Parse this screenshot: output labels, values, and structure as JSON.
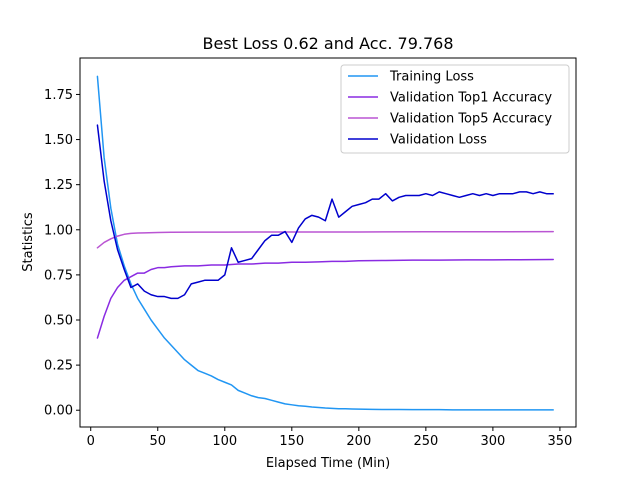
{
  "chart_data": {
    "type": "line",
    "title": "Best Loss 0.62 and Acc. 79.768",
    "xlabel": "Elapsed Time (Min)",
    "ylabel": "Statistics",
    "xlim": [
      -8,
      362
    ],
    "ylim": [
      -0.093,
      1.952
    ],
    "xticks": [
      0,
      50,
      100,
      150,
      200,
      250,
      300,
      350
    ],
    "yticks": [
      0.0,
      0.25,
      0.5,
      0.75,
      1.0,
      1.25,
      1.5,
      1.75
    ],
    "ytick_labels": [
      "0.00",
      "0.25",
      "0.50",
      "0.75",
      "1.00",
      "1.25",
      "1.50",
      "1.75"
    ],
    "grid": false,
    "legend_placement": "upper right",
    "series": [
      {
        "name": "Training Loss",
        "color": "#2196f3",
        "x": [
          5,
          10,
          15,
          20,
          25,
          30,
          35,
          40,
          45,
          50,
          55,
          60,
          65,
          70,
          75,
          80,
          85,
          90,
          95,
          100,
          105,
          110,
          115,
          120,
          125,
          130,
          135,
          140,
          145,
          150,
          155,
          160,
          165,
          170,
          175,
          180,
          185,
          190,
          195,
          200,
          210,
          220,
          230,
          240,
          250,
          260,
          270,
          280,
          290,
          300,
          310,
          320,
          330,
          340,
          345
        ],
        "y": [
          1.85,
          1.4,
          1.12,
          0.92,
          0.8,
          0.7,
          0.62,
          0.56,
          0.5,
          0.45,
          0.4,
          0.36,
          0.32,
          0.28,
          0.25,
          0.22,
          0.205,
          0.19,
          0.17,
          0.155,
          0.14,
          0.11,
          0.095,
          0.08,
          0.07,
          0.065,
          0.055,
          0.045,
          0.035,
          0.03,
          0.025,
          0.022,
          0.018,
          0.015,
          0.012,
          0.01,
          0.008,
          0.008,
          0.007,
          0.006,
          0.005,
          0.004,
          0.004,
          0.003,
          0.003,
          0.003,
          0.002,
          0.002,
          0.002,
          0.002,
          0.002,
          0.002,
          0.002,
          0.002,
          0.002
        ]
      },
      {
        "name": "Validation Top1 Accuracy",
        "color": "#8a2be2",
        "x": [
          5,
          10,
          15,
          20,
          25,
          30,
          35,
          40,
          45,
          50,
          55,
          60,
          70,
          80,
          90,
          100,
          110,
          120,
          130,
          140,
          150,
          160,
          170,
          180,
          190,
          200,
          220,
          240,
          260,
          280,
          300,
          320,
          345
        ],
        "y": [
          0.4,
          0.52,
          0.62,
          0.68,
          0.72,
          0.74,
          0.76,
          0.76,
          0.78,
          0.79,
          0.79,
          0.795,
          0.8,
          0.8,
          0.805,
          0.805,
          0.81,
          0.81,
          0.815,
          0.815,
          0.82,
          0.82,
          0.822,
          0.825,
          0.825,
          0.828,
          0.83,
          0.832,
          0.832,
          0.833,
          0.833,
          0.834,
          0.835
        ]
      },
      {
        "name": "Validation Top5 Accuracy",
        "color": "#ba55d3",
        "x": [
          5,
          10,
          15,
          20,
          25,
          30,
          35,
          40,
          50,
          60,
          80,
          100,
          150,
          200,
          250,
          300,
          345
        ],
        "y": [
          0.9,
          0.93,
          0.95,
          0.965,
          0.975,
          0.98,
          0.982,
          0.983,
          0.985,
          0.986,
          0.987,
          0.987,
          0.988,
          0.988,
          0.989,
          0.989,
          0.99
        ]
      },
      {
        "name": "Validation Loss",
        "color": "#0000cd",
        "x": [
          5,
          10,
          15,
          20,
          25,
          30,
          35,
          40,
          45,
          50,
          55,
          60,
          65,
          70,
          75,
          80,
          85,
          90,
          95,
          100,
          105,
          110,
          115,
          120,
          125,
          130,
          135,
          140,
          145,
          150,
          155,
          160,
          165,
          170,
          175,
          180,
          185,
          190,
          195,
          200,
          205,
          210,
          215,
          220,
          225,
          230,
          235,
          240,
          245,
          250,
          255,
          260,
          265,
          270,
          275,
          280,
          285,
          290,
          295,
          300,
          305,
          310,
          315,
          320,
          325,
          330,
          335,
          340,
          345
        ],
        "y": [
          1.58,
          1.27,
          1.05,
          0.89,
          0.78,
          0.68,
          0.7,
          0.66,
          0.64,
          0.63,
          0.63,
          0.62,
          0.62,
          0.64,
          0.7,
          0.71,
          0.72,
          0.72,
          0.72,
          0.75,
          0.9,
          0.82,
          0.83,
          0.84,
          0.89,
          0.94,
          0.97,
          0.97,
          0.99,
          0.93,
          1.01,
          1.06,
          1.08,
          1.07,
          1.05,
          1.17,
          1.07,
          1.1,
          1.13,
          1.14,
          1.15,
          1.17,
          1.17,
          1.2,
          1.16,
          1.18,
          1.19,
          1.19,
          1.19,
          1.2,
          1.19,
          1.21,
          1.2,
          1.19,
          1.18,
          1.19,
          1.2,
          1.19,
          1.2,
          1.19,
          1.2,
          1.2,
          1.2,
          1.21,
          1.21,
          1.2,
          1.21,
          1.2,
          1.2
        ]
      }
    ]
  }
}
